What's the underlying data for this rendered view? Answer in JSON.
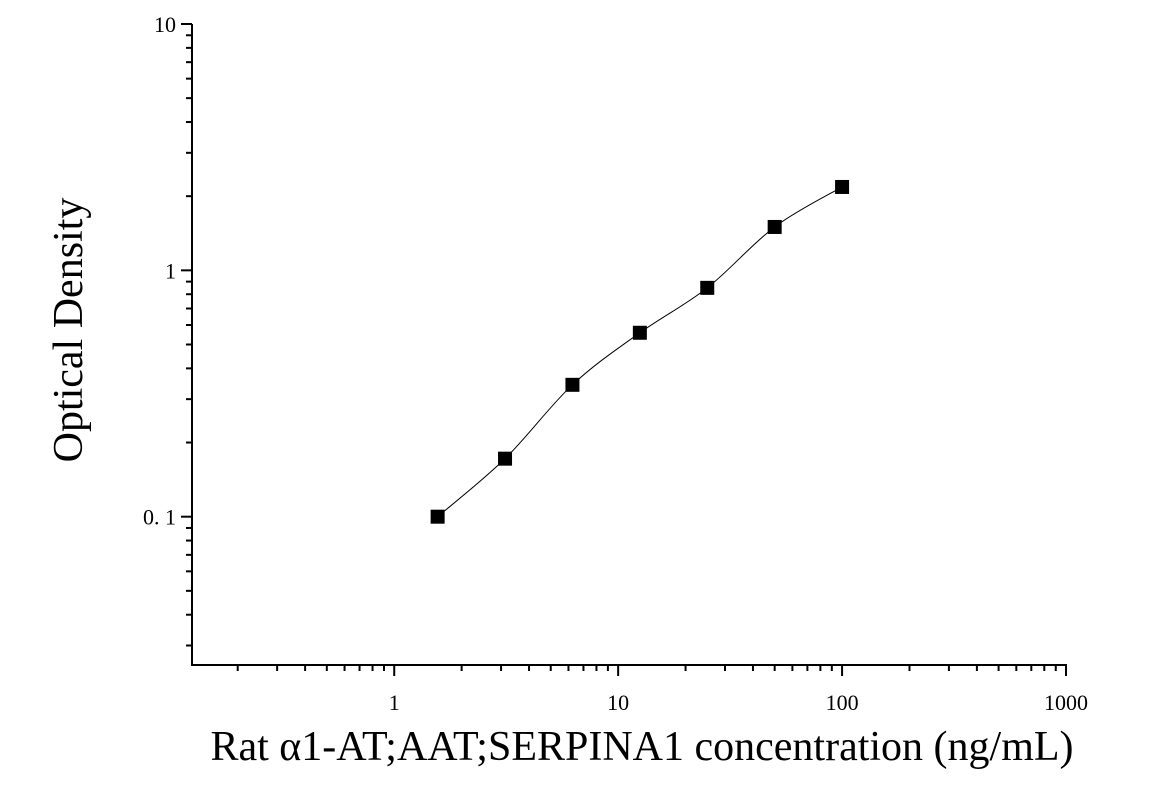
{
  "chart_data": {
    "type": "scatter",
    "x_label": "Rat α1-AT;AAT;SERPINA1 concentration (ng/mL)",
    "y_label": "Optical Density",
    "x": [
      1.5625,
      3.125,
      6.25,
      12.5,
      25,
      50,
      100
    ],
    "values": [
      0.1,
      0.172,
      0.343,
      0.558,
      0.849,
      1.5,
      2.18
    ],
    "color": "#000000",
    "xlog": true,
    "ylog": true,
    "minor_ticks": true,
    "fit_curve": true,
    "xlim": [
      0.125,
      1000
    ],
    "ylim": [
      0.025,
      10
    ],
    "xticks": [
      1,
      10,
      100,
      1000
    ],
    "yticks": [
      {
        "value": 0.1,
        "label": "0. 1"
      },
      1,
      10
    ]
  }
}
